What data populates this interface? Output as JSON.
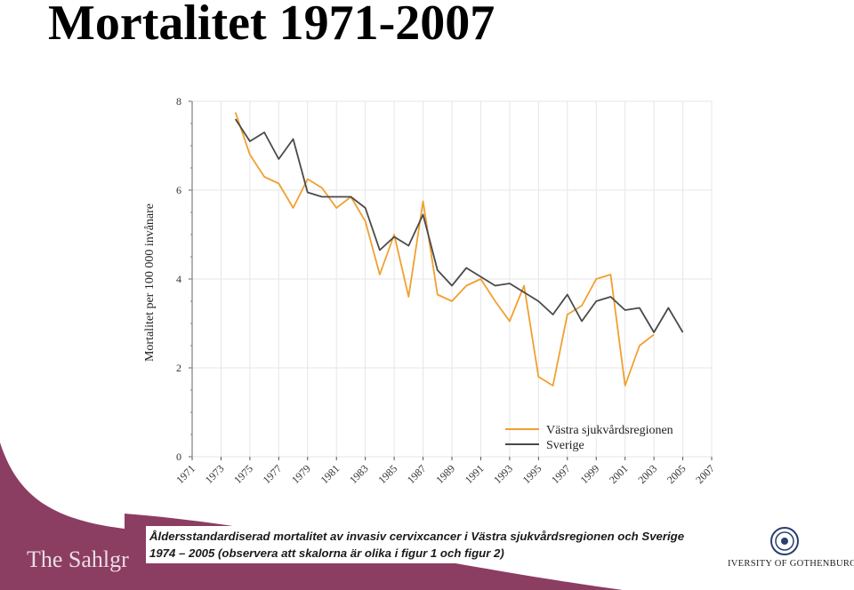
{
  "title": "Mortalitet 1971-2007",
  "caption": {
    "line1": "Åldersstandardiserad mortalitet av invasiv cervixcancer i Västra sjukvårdsregionen och Sverige",
    "line2": "1974 – 2005 (observera att skalorna är olika i figur 1 och figur 2)"
  },
  "footer": {
    "hospital_text": "The Sahlgr",
    "university_text": "IVERSITY OF GOTHENBURG",
    "band_color": "#8c3d62"
  },
  "colors": {
    "vastra": "#f0a030",
    "sverige": "#4a4a4a",
    "grid": "#e6e6e6"
  },
  "chart_data": {
    "type": "line",
    "title": "",
    "xlabel": "",
    "ylabel": "Mortalitet per 100 000 invånare",
    "xlim": [
      1971,
      2007
    ],
    "ylim": [
      0,
      8
    ],
    "x_ticks": [
      "1971",
      "1973",
      "1975",
      "1977",
      "1979",
      "1981",
      "1983",
      "1985",
      "1987",
      "1989",
      "1991",
      "1993",
      "1995",
      "1997",
      "1999",
      "2001",
      "2003",
      "2005",
      "2007"
    ],
    "y_ticks": [
      "0",
      "2",
      "4",
      "6",
      "8"
    ],
    "grid": true,
    "legend_position": "bottom-right",
    "series": [
      {
        "name": "Västra sjukvårdsregionen",
        "x": [
          1974,
          1975,
          1976,
          1977,
          1978,
          1979,
          1980,
          1981,
          1982,
          1983,
          1984,
          1985,
          1986,
          1987,
          1988,
          1989,
          1990,
          1991,
          1992,
          1993,
          1994,
          1995,
          1996,
          1997,
          1998,
          1999,
          2000,
          2001,
          2002,
          2003
        ],
        "y": [
          7.75,
          6.8,
          6.3,
          6.15,
          5.6,
          6.25,
          6.05,
          5.6,
          5.85,
          5.3,
          4.1,
          5.0,
          3.6,
          5.75,
          3.65,
          3.5,
          3.85,
          4.0,
          3.5,
          3.05,
          3.85,
          1.8,
          1.6,
          3.2,
          3.4,
          4.0,
          4.1,
          1.6,
          2.5,
          2.75
        ]
      },
      {
        "name": "Sverige",
        "x": [
          1974,
          1975,
          1976,
          1977,
          1978,
          1979,
          1980,
          1981,
          1982,
          1983,
          1984,
          1985,
          1986,
          1987,
          1988,
          1989,
          1990,
          1991,
          1992,
          1993,
          1994,
          1995,
          1996,
          1997,
          1998,
          1999,
          2000,
          2001,
          2002,
          2003,
          2004,
          2005
        ],
        "y": [
          7.6,
          7.1,
          7.3,
          6.7,
          7.15,
          5.95,
          5.85,
          5.85,
          5.85,
          5.6,
          4.65,
          4.95,
          4.75,
          5.45,
          4.2,
          3.85,
          4.25,
          4.05,
          3.85,
          3.9,
          3.7,
          3.5,
          3.2,
          3.65,
          3.05,
          3.5,
          3.6,
          3.3,
          3.35,
          2.8,
          3.35,
          2.8
        ]
      }
    ]
  }
}
